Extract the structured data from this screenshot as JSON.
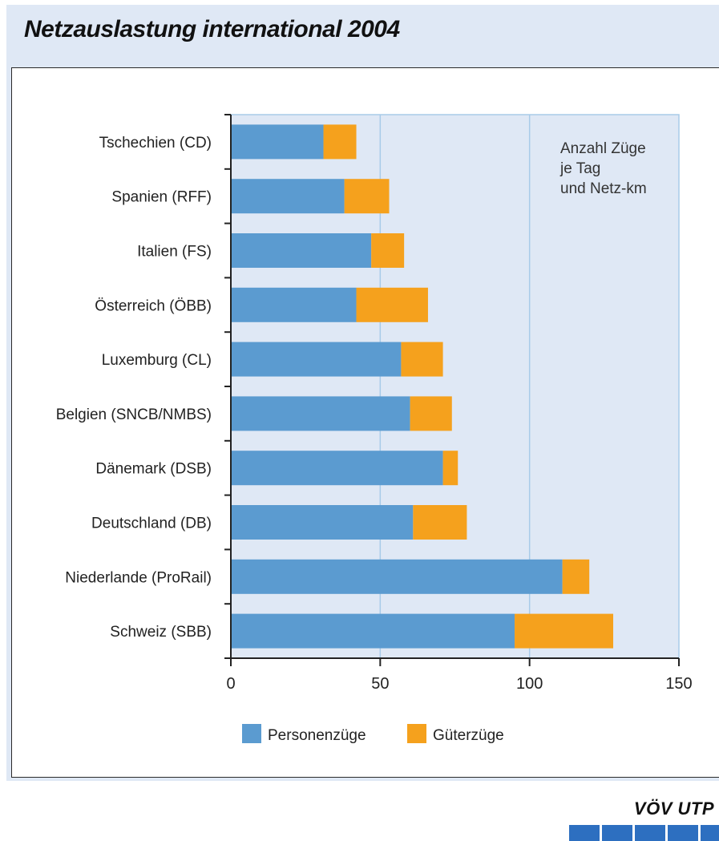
{
  "title": "Netzauslastung international 2004",
  "chart_data": {
    "type": "bar",
    "orientation": "horizontal",
    "stacked": true,
    "categories": [
      "Tschechien (CD)",
      "Spanien (RFF)",
      "Italien (FS)",
      "Österreich (ÖBB)",
      "Luxemburg (CL)",
      "Belgien (SNCB/NMBS)",
      "Dänemark (DSB)",
      "Deutschland (DB)",
      "Niederlande (ProRail)",
      "Schweiz (SBB)"
    ],
    "series": [
      {
        "name": "Personenzüge",
        "color": "#5b9bd0",
        "values": [
          31,
          38,
          47,
          42,
          57,
          60,
          71,
          61,
          111,
          95
        ]
      },
      {
        "name": "Güterzüge",
        "color": "#f5a11d",
        "values": [
          11,
          15,
          11,
          24,
          14,
          14,
          5,
          18,
          9,
          33
        ]
      }
    ],
    "xlim": [
      0,
      150
    ],
    "xticks": [
      "0",
      "50",
      "100",
      "150"
    ],
    "annotation": [
      "Anzahl Züge",
      "je Tag",
      "und Netz-km"
    ],
    "grid": true,
    "legend_position": "bottom"
  },
  "logo": {
    "text": "VÖV UTP",
    "color": "#2d6fc0"
  },
  "colors": {
    "background": "#dfe8f5",
    "plot_area": "#dfe8f5",
    "gridline": "#a8cbe8"
  }
}
